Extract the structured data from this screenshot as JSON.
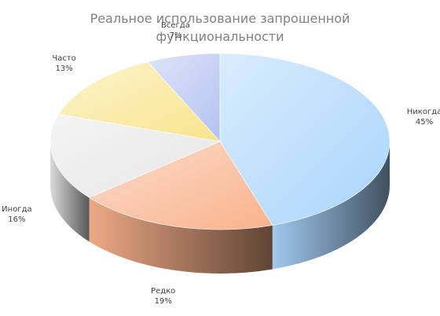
{
  "chart_data": {
    "type": "pie",
    "title_lines": [
      "Реальное использование запрошенной",
      "функциональности"
    ],
    "slices": [
      {
        "name": "Никогда",
        "value": 45,
        "pct_label": "45%",
        "color": "#a9d4fb"
      },
      {
        "name": "Редко",
        "value": 19,
        "pct_label": "19%",
        "color": "#f9b28c"
      },
      {
        "name": "Иногда",
        "value": 16,
        "pct_label": "16%",
        "color": "#e6e6e6"
      },
      {
        "name": "Часто",
        "value": 13,
        "pct_label": "13%",
        "color": "#f8e48d"
      },
      {
        "name": "Всегда",
        "value": 7,
        "pct_label": "7%",
        "color": "#b4c2f0"
      }
    ],
    "start": "top",
    "direction": "clockwise",
    "style": "3d",
    "legend": "none"
  }
}
